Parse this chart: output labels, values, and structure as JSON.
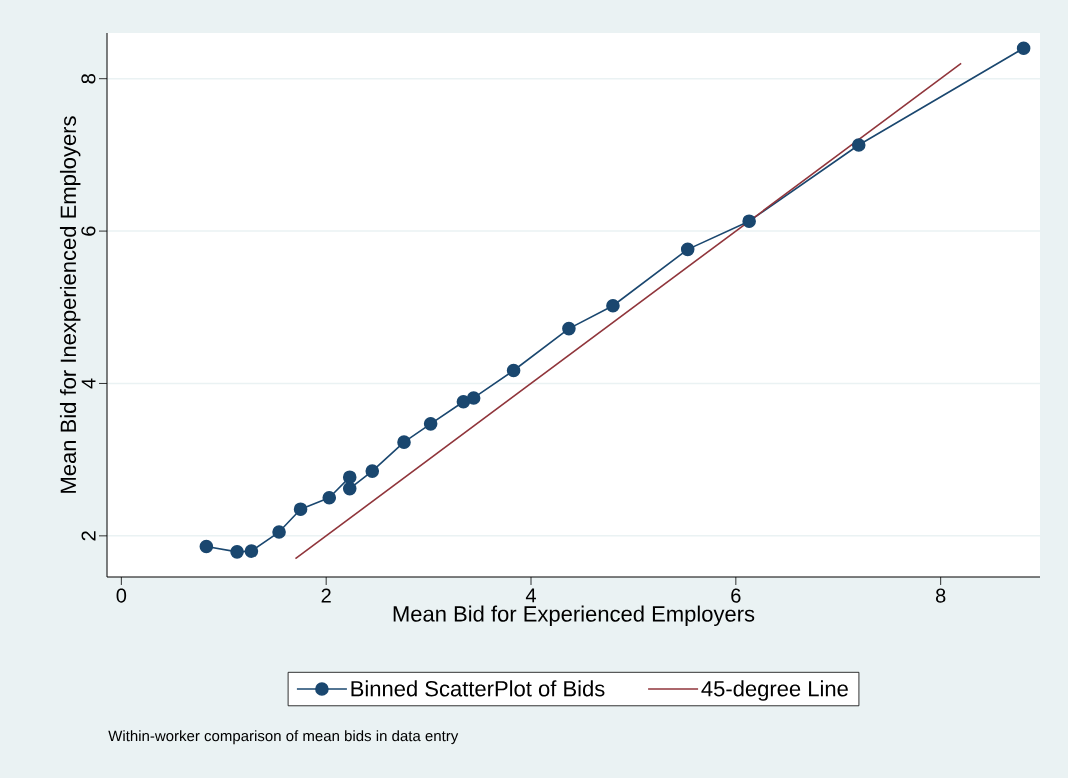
{
  "chart_data": {
    "type": "line",
    "xlabel": "Mean Bid for Experienced Employers",
    "ylabel": "Mean Bid for Inexperienced Employers",
    "xlim": [
      -0.14,
      8.97
    ],
    "ylim": [
      1.46,
      8.6
    ],
    "xticks": [
      0,
      2,
      4,
      6,
      8
    ],
    "yticks": [
      2,
      4,
      6,
      8
    ],
    "grid": "y",
    "legend": "bottom",
    "marker": "circle",
    "series": [
      {
        "name": "Binned ScatterPlot of Bids",
        "color": "#1a476f",
        "x": [
          0.83,
          1.13,
          1.27,
          1.54,
          1.75,
          2.03,
          2.23,
          2.23,
          2.45,
          2.76,
          3.02,
          3.34,
          3.44,
          3.83,
          4.37,
          4.8,
          5.53,
          6.13,
          7.2,
          8.81
        ],
        "values": [
          1.86,
          1.79,
          1.8,
          2.05,
          2.35,
          2.5,
          2.77,
          2.62,
          2.85,
          3.23,
          3.47,
          3.76,
          3.81,
          4.17,
          4.72,
          5.02,
          5.76,
          6.13,
          7.13,
          8.4
        ]
      },
      {
        "name": "45-degree Line",
        "color": "#90353b",
        "marker": "none",
        "x": [
          1.7,
          8.2
        ],
        "values": [
          1.7,
          8.2
        ]
      }
    ],
    "annotations": [
      "Within-worker comparison of mean bids in data entry"
    ]
  }
}
